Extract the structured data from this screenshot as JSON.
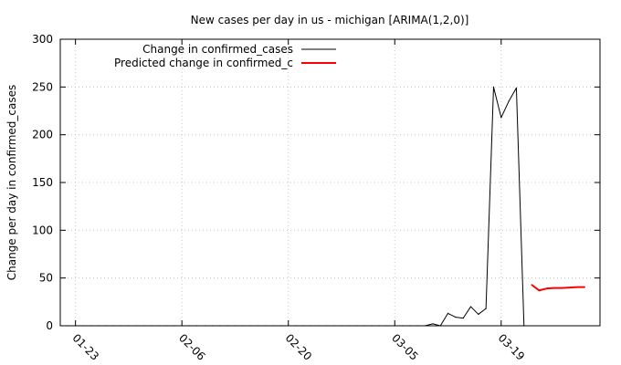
{
  "chart_data": {
    "type": "line",
    "title": "New cases per day in us - michigan [ARIMA(1,2,0)]",
    "xlabel": "",
    "ylabel": "Change per day in confirmed_cases",
    "ylim": [
      0,
      300
    ],
    "xlim": [
      "2020-01-21",
      "2020-04-01"
    ],
    "y_ticks": [
      0,
      50,
      100,
      150,
      200,
      250,
      300
    ],
    "x_ticks": [
      {
        "date": "2020-01-23",
        "label": "01-23"
      },
      {
        "date": "2020-02-06",
        "label": "02-06"
      },
      {
        "date": "2020-02-20",
        "label": "02-20"
      },
      {
        "date": "2020-03-05",
        "label": "03-05"
      },
      {
        "date": "2020-03-19",
        "label": "03-19"
      }
    ],
    "grid": true,
    "legend_position": "top-left",
    "series": [
      {
        "name": "Change in confirmed_cases",
        "color": "#000000",
        "points": [
          {
            "x": "2020-01-22",
            "y": 0
          },
          {
            "x": "2020-01-23",
            "y": 0
          },
          {
            "x": "2020-01-24",
            "y": 0
          },
          {
            "x": "2020-01-25",
            "y": 0
          },
          {
            "x": "2020-01-26",
            "y": 0
          },
          {
            "x": "2020-01-27",
            "y": 0
          },
          {
            "x": "2020-01-28",
            "y": 0
          },
          {
            "x": "2020-01-29",
            "y": 0
          },
          {
            "x": "2020-01-30",
            "y": 0
          },
          {
            "x": "2020-01-31",
            "y": 0
          },
          {
            "x": "2020-02-01",
            "y": 0
          },
          {
            "x": "2020-02-02",
            "y": 0
          },
          {
            "x": "2020-02-03",
            "y": 0
          },
          {
            "x": "2020-02-04",
            "y": 0
          },
          {
            "x": "2020-02-05",
            "y": 0
          },
          {
            "x": "2020-02-06",
            "y": 0
          },
          {
            "x": "2020-02-07",
            "y": 0
          },
          {
            "x": "2020-02-08",
            "y": 0
          },
          {
            "x": "2020-02-09",
            "y": 0
          },
          {
            "x": "2020-02-10",
            "y": 0
          },
          {
            "x": "2020-02-11",
            "y": 0
          },
          {
            "x": "2020-02-12",
            "y": 0
          },
          {
            "x": "2020-02-13",
            "y": 0
          },
          {
            "x": "2020-02-14",
            "y": 0
          },
          {
            "x": "2020-02-15",
            "y": 0
          },
          {
            "x": "2020-02-16",
            "y": 0
          },
          {
            "x": "2020-02-17",
            "y": 0
          },
          {
            "x": "2020-02-18",
            "y": 0
          },
          {
            "x": "2020-02-19",
            "y": 0
          },
          {
            "x": "2020-02-20",
            "y": 0
          },
          {
            "x": "2020-02-21",
            "y": 0
          },
          {
            "x": "2020-02-22",
            "y": 0
          },
          {
            "x": "2020-02-23",
            "y": 0
          },
          {
            "x": "2020-02-24",
            "y": 0
          },
          {
            "x": "2020-02-25",
            "y": 0
          },
          {
            "x": "2020-02-26",
            "y": 0
          },
          {
            "x": "2020-02-27",
            "y": 0
          },
          {
            "x": "2020-02-28",
            "y": 0
          },
          {
            "x": "2020-02-29",
            "y": 0
          },
          {
            "x": "2020-03-01",
            "y": 0
          },
          {
            "x": "2020-03-02",
            "y": 0
          },
          {
            "x": "2020-03-03",
            "y": 0
          },
          {
            "x": "2020-03-04",
            "y": 0
          },
          {
            "x": "2020-03-05",
            "y": 0
          },
          {
            "x": "2020-03-06",
            "y": 0
          },
          {
            "x": "2020-03-07",
            "y": 0
          },
          {
            "x": "2020-03-08",
            "y": 0
          },
          {
            "x": "2020-03-09",
            "y": 0
          },
          {
            "x": "2020-03-10",
            "y": 2
          },
          {
            "x": "2020-03-11",
            "y": 0
          },
          {
            "x": "2020-03-12",
            "y": 13
          },
          {
            "x": "2020-03-13",
            "y": 9
          },
          {
            "x": "2020-03-14",
            "y": 8
          },
          {
            "x": "2020-03-15",
            "y": 20
          },
          {
            "x": "2020-03-16",
            "y": 12
          },
          {
            "x": "2020-03-17",
            "y": 18
          },
          {
            "x": "2020-03-18",
            "y": 250
          },
          {
            "x": "2020-03-19",
            "y": 218
          },
          {
            "x": "2020-03-20",
            "y": 235
          },
          {
            "x": "2020-03-21",
            "y": 249
          },
          {
            "x": "2020-03-22",
            "y": 0
          }
        ]
      },
      {
        "name": "Predicted change in confirmed_c",
        "color": "#ff0000",
        "points": [
          {
            "x": "2020-03-23",
            "y": 43
          },
          {
            "x": "2020-03-24",
            "y": 37
          },
          {
            "x": "2020-03-25",
            "y": 39
          },
          {
            "x": "2020-03-26",
            "y": 39.5
          },
          {
            "x": "2020-03-27",
            "y": 39.5
          },
          {
            "x": "2020-03-28",
            "y": 40
          },
          {
            "x": "2020-03-29",
            "y": 40.5
          },
          {
            "x": "2020-03-30",
            "y": 40.5
          }
        ]
      }
    ]
  }
}
